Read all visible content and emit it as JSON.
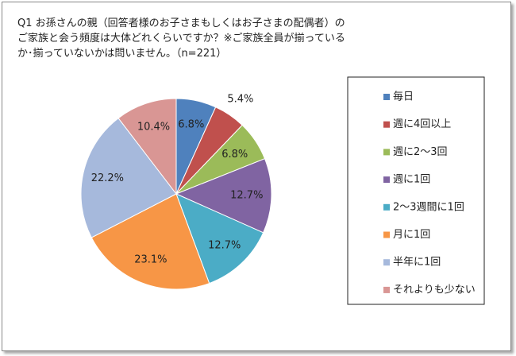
{
  "chart_data": {
    "type": "pie",
    "title": "Q1 お孫さんの親（回答者様のお子さまもしくはお子さまの配偶者）のご家族と会う頻度は大体どれくらいですか？※ご家族全員が揃っているか･揃っていないかは問いません。（n=221）",
    "categories": [
      "毎日",
      "週に4回以上",
      "週に2～3回",
      "週に1回",
      "2～3週間に1回",
      "月に1回",
      "半年に1回",
      "それよりも少ない"
    ],
    "values": [
      6.8,
      5.4,
      6.8,
      12.7,
      12.7,
      23.1,
      22.2,
      10.4
    ],
    "value_labels": [
      "6.8%",
      "5.4%",
      "6.8%",
      "12.7%",
      "12.7%",
      "23.1%",
      "22.2%",
      "10.4%"
    ],
    "colors": [
      "#4f81bd",
      "#c0504d",
      "#9bbb59",
      "#8064a2",
      "#4bacc6",
      "#f79646",
      "#a6b9dc",
      "#d99694"
    ],
    "legend": "right"
  }
}
